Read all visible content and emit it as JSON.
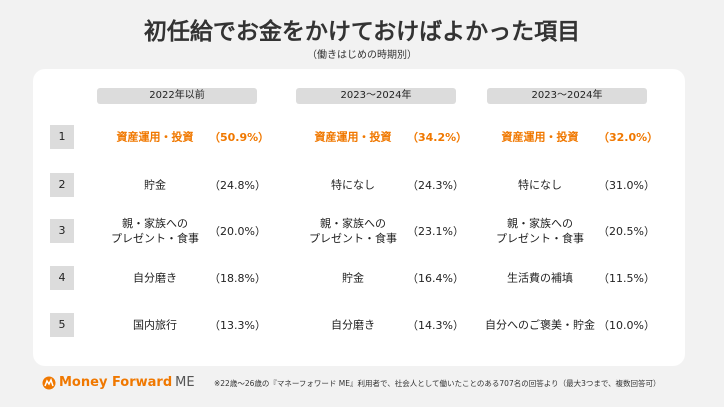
{
  "title": "初任給でお金をかけておけばよかった項目",
  "subtitle": "（働きはじめの時期別）",
  "columns": [
    {
      "header": "2022年以前",
      "rows": [
        {
          "label": "資産運用・投資",
          "pct": "（50.9%）"
        },
        {
          "label": "貯金",
          "pct": "（24.8%）"
        },
        {
          "label": "親・家族への\nプレゼント・食事",
          "pct": "（20.0%）"
        },
        {
          "label": "自分磨き",
          "pct": "（18.8%）"
        },
        {
          "label": "国内旅行",
          "pct": "（13.3%）"
        }
      ]
    },
    {
      "header": "2023〜2024年",
      "rows": [
        {
          "label": "資産運用・投資",
          "pct": "（34.2%）"
        },
        {
          "label": "特になし",
          "pct": "（24.3%）"
        },
        {
          "label": "親・家族への\nプレゼント・食事",
          "pct": "（23.1%）"
        },
        {
          "label": "貯金",
          "pct": "（16.4%）"
        },
        {
          "label": "自分磨き",
          "pct": "（14.3%）"
        }
      ]
    },
    {
      "header": "2023〜2024年",
      "rows": [
        {
          "label": "資産運用・投資",
          "pct": "（32.0%）"
        },
        {
          "label": "特になし",
          "pct": "（31.0%）"
        },
        {
          "label": "親・家族への\nプレゼント・食事",
          "pct": "（20.5%）"
        },
        {
          "label": "生活費の補填",
          "pct": "（11.5%）"
        },
        {
          "label": "自分へのご褒美・貯金",
          "pct": "（10.0%）"
        }
      ]
    }
  ],
  "ranks": [
    "1",
    "2",
    "3",
    "4",
    "5"
  ],
  "footer": {
    "logo_text": "Money Forward",
    "logo_suffix": "ME",
    "note": "※22歳〜26歳の『マネーフォワード ME』利用者で、社会人として働いたことのある707名の回答より（最大3つまで、複数回答可）"
  },
  "colors": {
    "accent": "#f07800",
    "header_bg": "#dcdcdc",
    "background": "#f2f2f2"
  }
}
